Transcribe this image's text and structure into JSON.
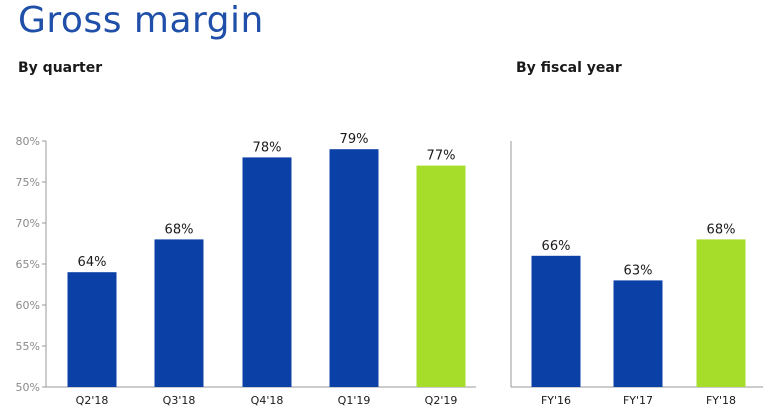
{
  "title": "Gross margin",
  "colors": {
    "bar": "#0b41a6",
    "highlight": "#a6dc2a",
    "axis": "#9a9a9a"
  },
  "chart_data": [
    {
      "type": "bar",
      "title": "By quarter",
      "categories": [
        "Q2'18",
        "Q3'18",
        "Q4'18",
        "Q1'19",
        "Q2'19"
      ],
      "values": [
        64,
        68,
        78,
        79,
        77
      ],
      "data_labels": [
        "64%",
        "68%",
        "78%",
        "79%",
        "77%"
      ],
      "highlight_index": 4,
      "ylim": [
        50,
        80
      ],
      "yticks": [
        50,
        55,
        60,
        65,
        70,
        75,
        80
      ],
      "ytick_labels": [
        "50%",
        "55%",
        "60%",
        "65%",
        "70%",
        "75%",
        "80%"
      ],
      "grid": false
    },
    {
      "type": "bar",
      "title": "By fiscal year",
      "categories": [
        "FY'16",
        "FY'17",
        "FY'18"
      ],
      "values": [
        66,
        63,
        68
      ],
      "data_labels": [
        "66%",
        "63%",
        "68%"
      ],
      "highlight_index": 2,
      "ylim": [
        50,
        80
      ],
      "grid": false
    }
  ]
}
